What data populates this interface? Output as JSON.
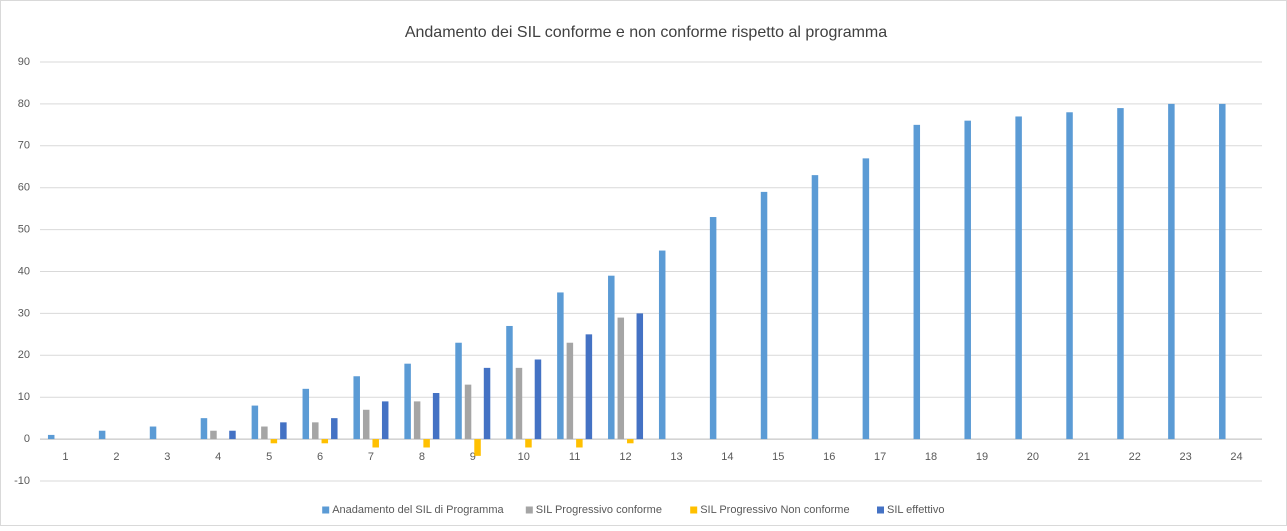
{
  "chart_data": {
    "type": "bar",
    "title": "Andamento dei SIL conforme e non conforme rispetto al programma",
    "categories": [
      "1",
      "2",
      "3",
      "4",
      "5",
      "6",
      "7",
      "8",
      "9",
      "10",
      "11",
      "12",
      "13",
      "14",
      "15",
      "16",
      "17",
      "18",
      "19",
      "20",
      "21",
      "22",
      "23",
      "24"
    ],
    "series": [
      {
        "name": "Anadamento del SIL di Programma",
        "color": "#5b9bd5",
        "values": [
          1,
          2,
          3,
          5,
          8,
          12,
          15,
          18,
          23,
          27,
          35,
          39,
          45,
          53,
          59,
          63,
          67,
          75,
          76,
          77,
          78,
          79,
          80,
          80
        ]
      },
      {
        "name": "SIL Progressivo conforme",
        "color": "#a5a5a5",
        "values": [
          0,
          0,
          0,
          2,
          3,
          4,
          7,
          9,
          13,
          17,
          23,
          29,
          null,
          null,
          null,
          null,
          null,
          null,
          null,
          null,
          null,
          null,
          null,
          null
        ]
      },
      {
        "name": "SIL Progressivo Non conforme",
        "color": "#ffc000",
        "values": [
          0,
          0,
          0,
          0,
          -1,
          -1,
          -2,
          -2,
          -4,
          -2,
          -2,
          -1,
          null,
          null,
          null,
          null,
          null,
          null,
          null,
          null,
          null,
          null,
          null,
          null
        ]
      },
      {
        "name": "SIL effettivo",
        "color": "#4472c4",
        "values": [
          0,
          0,
          0,
          2,
          4,
          5,
          9,
          11,
          17,
          19,
          25,
          30,
          null,
          null,
          null,
          null,
          null,
          null,
          null,
          null,
          null,
          null,
          null,
          null
        ]
      }
    ],
    "ylim": [
      -10,
      90
    ],
    "yticks": [
      -10,
      0,
      10,
      20,
      30,
      40,
      50,
      60,
      70,
      80,
      90
    ],
    "grid": true,
    "legend": "bottom"
  }
}
